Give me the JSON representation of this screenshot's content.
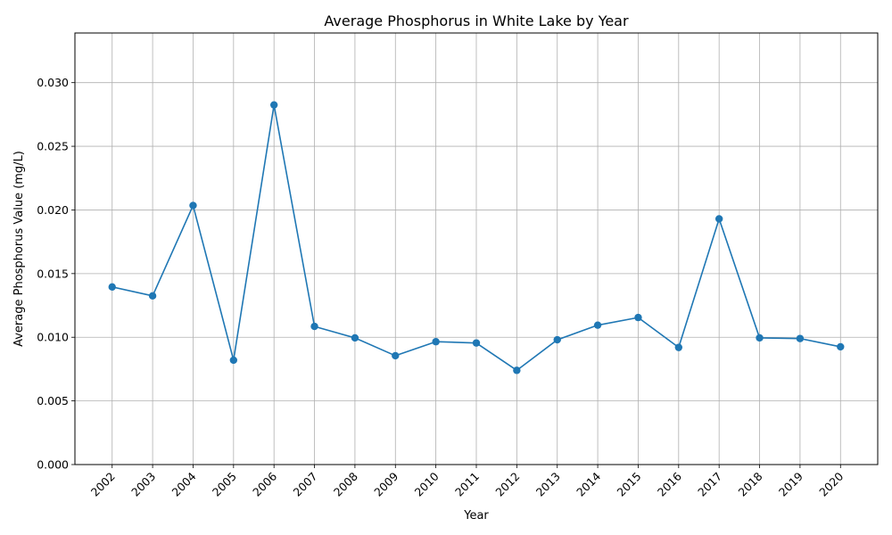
{
  "chart_data": {
    "type": "line",
    "title": "Average Phosphorus in White Lake by Year",
    "xlabel": "Year",
    "ylabel": "Average Phosphorus Value (mg/L)",
    "categories": [
      "2002",
      "2003",
      "2004",
      "2005",
      "2006",
      "2007",
      "2008",
      "2009",
      "2010",
      "2011",
      "2012",
      "2013",
      "2014",
      "2015",
      "2016",
      "2017",
      "2018",
      "2019",
      "2020"
    ],
    "series": [
      {
        "values": [
          0.01395,
          0.01325,
          0.02035,
          0.0082,
          0.02825,
          0.01085,
          0.00995,
          0.00855,
          0.00965,
          0.00955,
          0.0074,
          0.0098,
          0.01095,
          0.01155,
          0.0092,
          0.0193,
          0.00995,
          0.0099,
          0.00925
        ],
        "color": "#1f77b4"
      }
    ],
    "ylim": [
      0,
      0.0339
    ],
    "yticks": [
      "0.000",
      "0.005",
      "0.010",
      "0.015",
      "0.020",
      "0.025",
      "0.030"
    ],
    "ytick_values": [
      0,
      0.005,
      0.01,
      0.015,
      0.02,
      0.025,
      0.03
    ],
    "grid": true,
    "marker": "circle"
  }
}
